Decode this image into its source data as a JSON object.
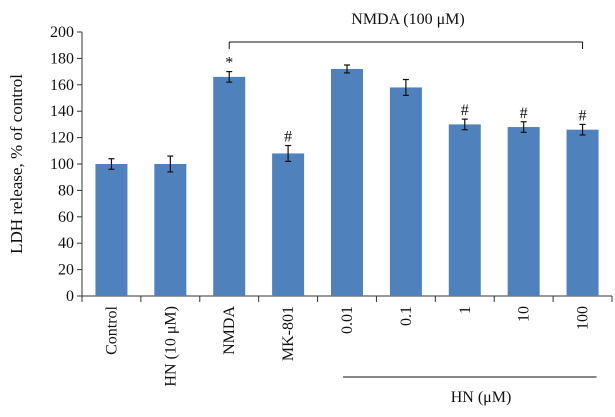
{
  "chart_data": {
    "type": "bar",
    "categories": [
      "Control",
      "HN (10 μM)",
      "NMDA",
      "MK-801",
      "0.01",
      "0.1",
      "1",
      "10",
      "100"
    ],
    "values": [
      100,
      100,
      166,
      108,
      172,
      158,
      130,
      128,
      126
    ],
    "errors": [
      4,
      6,
      4,
      6,
      3,
      6,
      4,
      4,
      4
    ],
    "annotations": [
      "",
      "",
      "*",
      "#",
      "",
      "",
      "#",
      "#",
      "#"
    ],
    "ylabel": "LDH release, % of control",
    "xlabel": "",
    "ylim": [
      0,
      200
    ],
    "yticks": [
      0,
      20,
      40,
      60,
      80,
      100,
      120,
      140,
      160,
      180,
      200
    ],
    "bar_color": "#4f81bd",
    "grid": false,
    "group_labels": {
      "nmda": "NMDA (100 μM)",
      "hn": "HN (μM)"
    }
  }
}
